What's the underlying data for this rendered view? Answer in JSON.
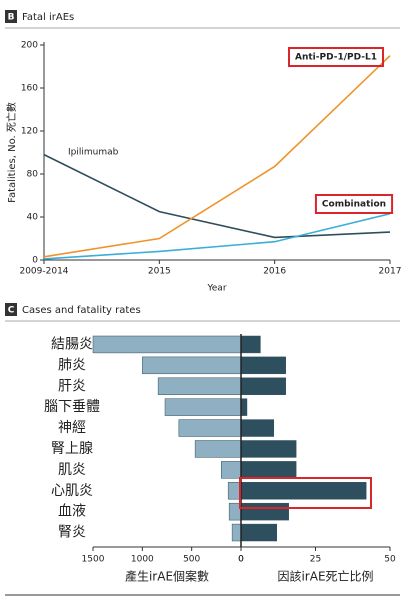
{
  "chart_data": [
    {
      "type": "line",
      "panel": "B",
      "title": "Fatal irAEs",
      "xlabel": "Year",
      "ylabel": "Fatalities, No. 死亡數",
      "categories": [
        "2009-2014",
        "2015",
        "2016",
        "2017"
      ],
      "series": [
        {
          "name": "Ipilimumab",
          "color": "#2f4d5c",
          "values": [
            98,
            45,
            21,
            26
          ]
        },
        {
          "name": "Anti-PD-1/PD-L1",
          "color": "#f0922a",
          "values": [
            3,
            20,
            87,
            190
          ]
        },
        {
          "name": "Combination",
          "color": "#3aaed8",
          "values": [
            1,
            8,
            17,
            43
          ]
        }
      ],
      "ylim": [
        0,
        200
      ],
      "yticks": [
        0,
        40,
        80,
        120,
        160,
        200
      ]
    },
    {
      "type": "butterfly",
      "panel": "C",
      "title": "Cases and fatality rates",
      "categories": [
        "結腸炎",
        "肺炎",
        "肝炎",
        "腦下垂體",
        "神經",
        "腎上腺",
        "肌炎",
        "心肌炎",
        "血液",
        "腎炎"
      ],
      "series": [
        {
          "name": "產生irAE個案數",
          "color": "#8fb0c3",
          "values": [
            1500,
            1000,
            840,
            770,
            630,
            465,
            200,
            130,
            120,
            90
          ],
          "xlim": [
            1500,
            0
          ],
          "xticks": [
            1500,
            1000,
            500,
            0
          ]
        },
        {
          "name": "因該irAE死亡比例",
          "color": "#2d4f5e",
          "values": [
            6.5,
            15,
            15,
            2,
            11,
            18.5,
            18.5,
            42,
            16,
            12
          ],
          "xlim": [
            0,
            50
          ],
          "xticks": [
            0,
            25,
            50
          ]
        }
      ]
    }
  ]
}
